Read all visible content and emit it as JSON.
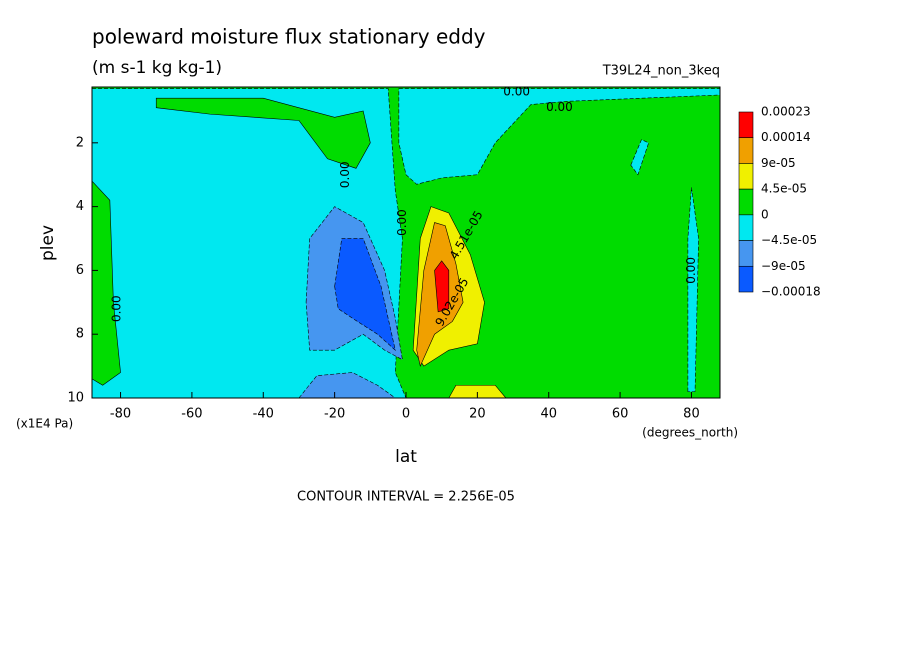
{
  "chart_data": {
    "type": "contour",
    "title": "poleward moisture flux stationary eddy",
    "subtitle": "(m s-1 kg kg-1)",
    "run_label": "T39L24_non_3keq",
    "xlabel": "lat",
    "xunits": "(degrees_north)",
    "ylabel": "plev",
    "yunits": "(x1E4 Pa)",
    "footer": "CONTOUR INTERVAL = 2.256E-05",
    "xlim": [
      -88,
      88
    ],
    "xticks": [
      -80,
      -60,
      -40,
      -20,
      0,
      20,
      40,
      60,
      80
    ],
    "ylim": [
      10,
      0.25
    ],
    "yticks": [
      2,
      4,
      6,
      8,
      10
    ],
    "colorbar": {
      "levels": [
        0.00023,
        0.00014,
        {
          "value": 9e-05,
          "label": "9e-05"
        },
        {
          "value": 4.5e-05,
          "label": "4.5e-05"
        },
        0,
        {
          "value": -4.5e-05,
          "label": "−4.5e-05"
        },
        {
          "value": -9e-05,
          "label": "−9e-05"
        },
        {
          "value": -0.00018,
          "label": "−0.00018"
        }
      ],
      "colors": [
        "#ff0000",
        "#f0a000",
        "#f0f000",
        "#00dc00",
        "#00e8f0",
        "#4696f0",
        "#0a5aff"
      ]
    },
    "regions": [
      {
        "value": 0,
        "points": [
          [
            -88,
            10
          ],
          [
            -88,
            0.25
          ],
          [
            88,
            0.25
          ],
          [
            88,
            10
          ]
        ]
      },
      {
        "value": -2e-05,
        "points": [
          [
            -88,
            0.3
          ],
          [
            -5,
            0.3
          ],
          [
            -3,
            3.5
          ],
          [
            -1,
            5
          ],
          [
            -3,
            9.2
          ],
          [
            0,
            10
          ],
          [
            -88,
            10
          ]
        ]
      },
      {
        "value": 0,
        "points": [
          [
            -88,
            3.2
          ],
          [
            -83,
            3.8
          ],
          [
            -82,
            7
          ],
          [
            -80,
            9.2
          ],
          [
            -85,
            9.6
          ],
          [
            -88,
            9.4
          ]
        ]
      },
      {
        "value": 0,
        "points": [
          [
            -70,
            0.6
          ],
          [
            -40,
            0.6
          ],
          [
            -20,
            1.2
          ],
          [
            -12,
            1
          ],
          [
            -10,
            2
          ],
          [
            -14,
            2.8
          ],
          [
            -22,
            2.5
          ],
          [
            -30,
            1.3
          ],
          [
            -55,
            1.1
          ],
          [
            -70,
            0.9
          ]
        ]
      },
      {
        "value": -2e-05,
        "points": [
          [
            -2,
            0.3
          ],
          [
            88,
            0.3
          ],
          [
            88,
            0.5
          ],
          [
            45,
            0.7
          ],
          [
            35,
            0.8
          ],
          [
            25,
            2
          ],
          [
            20,
            3
          ],
          [
            10,
            3.1
          ],
          [
            3,
            3.3
          ],
          [
            0,
            3
          ],
          [
            -2,
            2
          ]
        ]
      },
      {
        "value": -2e-05,
        "points": [
          [
            79,
            9.8
          ],
          [
            79,
            5
          ],
          [
            80,
            3.4
          ],
          [
            82,
            5
          ],
          [
            81,
            9.8
          ]
        ]
      },
      {
        "value": -2e-05,
        "points": [
          [
            63,
            2.7
          ],
          [
            66,
            1.9
          ],
          [
            68,
            2
          ],
          [
            65,
            3
          ]
        ]
      },
      {
        "value": -6e-05,
        "points": [
          [
            -28,
            7
          ],
          [
            -27,
            5
          ],
          [
            -20,
            4
          ],
          [
            -12,
            4.5
          ],
          [
            -6,
            6
          ],
          [
            -3,
            7.5
          ],
          [
            -1,
            8.8
          ],
          [
            -6,
            8.5
          ],
          [
            -12,
            8
          ],
          [
            -20,
            8.5
          ],
          [
            -27,
            8.5
          ]
        ]
      },
      {
        "value": -0.0001,
        "points": [
          [
            -20,
            6.5
          ],
          [
            -18,
            5
          ],
          [
            -12,
            5
          ],
          [
            -7,
            6.5
          ],
          [
            -5,
            7.5
          ],
          [
            -3,
            8.5
          ],
          [
            -8,
            8
          ],
          [
            -15,
            7.5
          ],
          [
            -19,
            7.2
          ]
        ]
      },
      {
        "value": -6e-05,
        "points": [
          [
            -30,
            10
          ],
          [
            -25,
            9.3
          ],
          [
            -15,
            9.2
          ],
          [
            -8,
            9.6
          ],
          [
            -3,
            10
          ]
        ]
      },
      {
        "value": 6e-05,
        "points": [
          [
            2,
            8.5
          ],
          [
            4,
            5
          ],
          [
            7,
            4
          ],
          [
            12,
            4.2
          ],
          [
            18,
            5.5
          ],
          [
            22,
            7
          ],
          [
            20,
            8.3
          ],
          [
            12,
            8.5
          ],
          [
            5,
            9
          ]
        ]
      },
      {
        "value": 0.0001,
        "points": [
          [
            3,
            8.5
          ],
          [
            5,
            6
          ],
          [
            8,
            4.5
          ],
          [
            11,
            4.6
          ],
          [
            14,
            5.8
          ],
          [
            16,
            7
          ],
          [
            13,
            7.6
          ],
          [
            8,
            8
          ],
          [
            4,
            9
          ]
        ]
      },
      {
        "value": 0.00016,
        "points": [
          [
            8,
            6
          ],
          [
            10,
            5.7
          ],
          [
            12,
            6
          ],
          [
            12,
            7.2
          ],
          [
            9,
            7.3
          ]
        ]
      },
      {
        "value": 6e-05,
        "points": [
          [
            12,
            10
          ],
          [
            14,
            9.6
          ],
          [
            25,
            9.6
          ],
          [
            28,
            10
          ]
        ]
      }
    ],
    "contour_labels": [
      {
        "label": "0.00",
        "x": -81,
        "y": 7.2
      },
      {
        "label": "0.00",
        "x": -17,
        "y": 3
      },
      {
        "label": "0.00",
        "x": -1,
        "y": 4.5
      },
      {
        "label": "0.00",
        "x": 31,
        "y": 0.4
      },
      {
        "label": "0.00",
        "x": 43,
        "y": 0.9
      },
      {
        "label": "0.00",
        "x": 80,
        "y": 6
      },
      {
        "label": "4.51e-05",
        "x": 17,
        "y": 4.9
      },
      {
        "label": "9.02e-05",
        "x": 13,
        "y": 7
      }
    ]
  }
}
